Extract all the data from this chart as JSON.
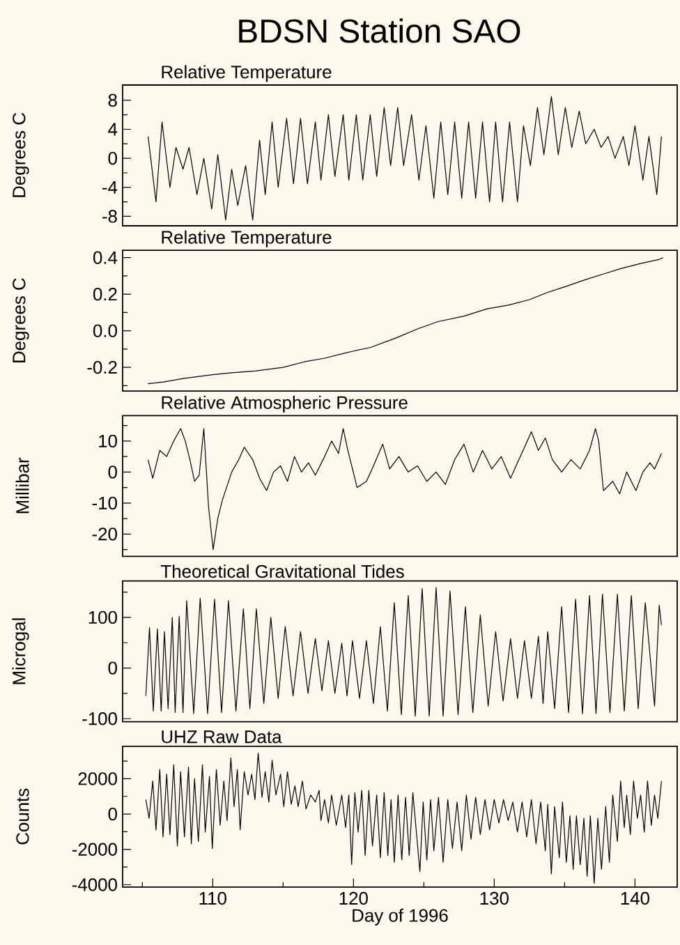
{
  "chart_data": [
    {
      "type": "line",
      "title": "BDSN Station SAO",
      "subtitle": "Relative Temperature",
      "ylabel": "Degrees C",
      "color": "#000000",
      "xlim": [
        103.6,
        143.0
      ],
      "ylim": [
        -9.3,
        10.1
      ],
      "tick_labels": "y",
      "yticks": [
        8,
        4,
        0,
        -4,
        -8,
        {
          "value": 6,
          "label": null
        },
        {
          "value": 2,
          "label": null
        },
        {
          "value": -2,
          "label": null
        },
        {
          "value": -6,
          "label": null
        }
      ],
      "x": [
        105.41,
        105.97,
        106.4,
        106.96,
        107.39,
        107.89,
        108.32,
        108.88,
        109.37,
        109.93,
        110.36,
        110.92,
        111.35,
        111.78,
        112.34,
        112.84,
        113.33,
        113.73,
        114.22,
        114.65,
        115.25,
        115.74,
        116.24,
        116.73,
        117.29,
        117.69,
        118.22,
        118.68,
        119.27,
        119.67,
        120.2,
        120.66,
        121.19,
        121.65,
        122.18,
        122.64,
        123.14,
        123.56,
        124.13,
        124.65,
        125.15,
        125.71,
        126.2,
        126.7,
        127.19,
        127.69,
        128.18,
        128.68,
        129.17,
        129.67,
        130.1,
        130.59,
        131.09,
        131.65,
        132.08,
        132.57,
        133.07,
        133.53,
        134.06,
        134.55,
        135.05,
        135.51,
        136.04,
        136.5,
        137.1,
        137.59,
        138.09,
        138.58,
        139.17,
        139.57,
        140.0,
        140.56,
        140.99,
        141.55,
        141.88
      ],
      "values": [
        3,
        -6,
        5,
        -4,
        1.5,
        -1.5,
        1.5,
        -5,
        0,
        -7,
        0.5,
        -8.5,
        -1.5,
        -6.5,
        -1,
        -8.5,
        2.5,
        -5,
        5,
        -4,
        5.5,
        -3.5,
        5.5,
        -3.5,
        5,
        -3,
        6,
        -2.5,
        6,
        -3,
        6,
        -3,
        6,
        -2.5,
        7,
        -1,
        7,
        -1,
        6,
        -3,
        4.5,
        -5.5,
        5,
        -5,
        5,
        -5.5,
        5,
        -5.5,
        5,
        -6,
        5,
        -6,
        5,
        -6,
        4.5,
        -1,
        7,
        0.5,
        8.5,
        0.5,
        7,
        1.5,
        6.5,
        2,
        4,
        1.5,
        3,
        0,
        3,
        -1,
        4.5,
        -3,
        3,
        -5,
        3
      ]
    },
    {
      "type": "line",
      "title": "Relative Temperature",
      "ylabel": "Degrees C",
      "color": "#000000",
      "xlim": [
        103.6,
        143.0
      ],
      "ylim": [
        -0.33,
        0.44
      ],
      "tick_labels": "y",
      "yticks": [
        0.4,
        0.2,
        {
          "value": 0,
          "label": "0.0"
        },
        -0.2,
        {
          "value": 0.3,
          "label": null
        },
        {
          "value": 0.1,
          "label": null
        },
        {
          "value": -0.1,
          "label": null
        },
        {
          "value": -0.3,
          "label": null
        }
      ],
      "x": [
        105.4,
        106.5,
        108,
        110,
        111.35,
        113,
        115,
        116.5,
        117.95,
        119.5,
        121.25,
        123,
        124.55,
        126,
        127.85,
        129.5,
        131,
        132.5,
        133.8,
        135,
        136.5,
        137.75,
        139,
        140.5,
        141.7,
        142
      ],
      "values": [
        -0.29,
        -0.28,
        -0.26,
        -0.24,
        -0.23,
        -0.22,
        -0.2,
        -0.17,
        -0.15,
        -0.12,
        -0.09,
        -0.04,
        0.01,
        0.05,
        0.08,
        0.12,
        0.14,
        0.17,
        0.21,
        0.24,
        0.28,
        0.31,
        0.34,
        0.37,
        0.39,
        0.4
      ]
    },
    {
      "type": "line",
      "title": "Relative Atmospheric Pressure",
      "ylabel": "Millibar",
      "color": "#000000",
      "xlim": [
        103.6,
        143.0
      ],
      "ylim": [
        -27.2,
        18.2
      ],
      "tick_labels": "y",
      "yticks": [
        10,
        0,
        -10,
        -20,
        {
          "value": 15,
          "label": null
        },
        {
          "value": 5,
          "label": null
        },
        {
          "value": -5,
          "label": null
        },
        {
          "value": -15,
          "label": null
        },
        {
          "value": -25,
          "label": null
        }
      ],
      "x": [
        105.41,
        105.74,
        106.24,
        106.73,
        107.23,
        107.72,
        108.05,
        108.38,
        108.71,
        109.04,
        109.37,
        109.7,
        110.03,
        110.36,
        110.69,
        111.35,
        111.85,
        112.24,
        112.84,
        113.33,
        113.83,
        114.32,
        114.82,
        115.31,
        115.81,
        116.3,
        116.8,
        117.29,
        117.95,
        118.45,
        118.94,
        119.27,
        119.6,
        120.26,
        120.92,
        121.42,
        122.08,
        122.57,
        123.23,
        123.89,
        124.55,
        125.21,
        125.87,
        126.53,
        127.19,
        127.85,
        128.51,
        129.17,
        129.83,
        130.5,
        131.16,
        131.65,
        132.15,
        132.64,
        133.14,
        133.63,
        134.13,
        134.79,
        135.45,
        136.11,
        136.77,
        137.19,
        137.42,
        137.76,
        138.42,
        138.91,
        139.41,
        140.07,
        140.56,
        141.06,
        141.39,
        141.88
      ],
      "values": [
        4,
        -2,
        7,
        5,
        10,
        14,
        10,
        4,
        -3,
        -1,
        14,
        -11,
        -25,
        -15,
        -9,
        0,
        4,
        8,
        4,
        -2,
        -6,
        0,
        2,
        -3,
        5,
        0,
        3,
        -1,
        5,
        10,
        6,
        14,
        7,
        -5,
        -3,
        2,
        9,
        1,
        5,
        0,
        2,
        -3,
        0,
        -4,
        4,
        9,
        0,
        7,
        1,
        5,
        -2,
        3,
        8,
        13,
        7,
        11,
        4,
        0,
        4,
        1,
        7,
        14,
        10,
        -6,
        -3,
        -7,
        0,
        -6,
        0,
        3,
        1,
        6
      ]
    },
    {
      "type": "line",
      "title": "Theoretical Gravitational Tides",
      "ylabel": "Microgal",
      "color": "#000000",
      "xlim": [
        103.6,
        143.0
      ],
      "ylim": [
        -106,
        172
      ],
      "tick_labels": "y",
      "yticks": [
        100,
        0,
        -100,
        {
          "value": 150,
          "label": null
        },
        {
          "value": 50,
          "label": null
        },
        {
          "value": -50,
          "label": null
        }
      ],
      "x": [
        105.25,
        105.51,
        105.78,
        106.07,
        106.34,
        106.57,
        106.83,
        107.13,
        107.33,
        107.62,
        107.89,
        108.15,
        108.65,
        109.11,
        109.64,
        110.13,
        110.63,
        111.12,
        111.65,
        112.18,
        112.64,
        113.1,
        113.63,
        114.13,
        114.65,
        115.15,
        115.71,
        116.24,
        116.77,
        117.29,
        117.76,
        118.22,
        118.68,
        119.17,
        119.54,
        119.93,
        120.43,
        120.92,
        121.42,
        121.91,
        122.41,
        122.9,
        123.4,
        123.89,
        124.39,
        124.88,
        125.38,
        125.87,
        126.37,
        126.86,
        127.43,
        127.95,
        128.48,
        129.01,
        129.57,
        130.1,
        130.63,
        131.16,
        131.65,
        132.15,
        132.64,
        133.14,
        133.47,
        133.8,
        134.29,
        134.79,
        135.28,
        135.78,
        136.27,
        136.77,
        137.23,
        137.69,
        138.22,
        138.75,
        139.24,
        139.74,
        140.23,
        140.73,
        141.39,
        141.72,
        141.88
      ],
      "values": [
        -55,
        80,
        -85,
        77,
        -85,
        72,
        -80,
        100,
        -88,
        102,
        -88,
        133,
        -90,
        138,
        -90,
        136,
        -88,
        133,
        -85,
        117,
        -80,
        117,
        -70,
        100,
        -60,
        82,
        -55,
        72,
        -50,
        58,
        -45,
        54,
        -50,
        49,
        -55,
        54,
        -60,
        54,
        -70,
        82,
        -85,
        129,
        -92,
        143,
        -95,
        157,
        -95,
        159,
        -95,
        152,
        -92,
        121,
        -88,
        105,
        -75,
        72,
        -65,
        58,
        -60,
        54,
        -60,
        63,
        -70,
        72,
        -80,
        121,
        -88,
        136,
        -90,
        143,
        -90,
        146,
        -88,
        146,
        -85,
        143,
        -80,
        129,
        -75,
        124,
        85
      ]
    },
    {
      "type": "line",
      "title": "UHZ Raw Data",
      "ylabel": "Counts",
      "xlabel": "Day of 1996",
      "color": "#000000",
      "xlim": [
        103.6,
        143.0
      ],
      "ylim": [
        -4130,
        3840
      ],
      "xticks": [
        {
          "value": 105,
          "label": null
        },
        110,
        {
          "value": 115,
          "label": null
        },
        120,
        {
          "value": 125,
          "label": null
        },
        130,
        {
          "value": 135,
          "label": null
        },
        140
      ],
      "yticks": [
        2000,
        0,
        -2000,
        -4000,
        {
          "value": 3000,
          "label": null
        },
        {
          "value": 1000,
          "label": null
        },
        {
          "value": -1000,
          "label": null
        },
        {
          "value": -3000,
          "label": null
        }
      ],
      "x": [
        105.25,
        105.48,
        105.74,
        105.97,
        106.24,
        106.47,
        106.73,
        106.96,
        107.23,
        107.49,
        107.72,
        107.99,
        108.28,
        108.48,
        108.71,
        108.98,
        109.27,
        109.47,
        109.77,
        109.97,
        110.26,
        110.53,
        110.79,
        111.02,
        111.29,
        111.52,
        111.75,
        111.95,
        112.24,
        112.51,
        112.77,
        113.0,
        113.23,
        113.5,
        113.73,
        113.99,
        114.22,
        114.49,
        114.82,
        115.05,
        115.31,
        115.58,
        115.84,
        116.07,
        116.37,
        116.63,
        116.96,
        117.29,
        117.56,
        117.69,
        117.95,
        118.22,
        118.45,
        118.78,
        119.17,
        119.44,
        119.67,
        119.87,
        120.1,
        120.33,
        120.59,
        120.83,
        121.09,
        121.35,
        121.65,
        121.91,
        122.18,
        122.44,
        122.67,
        122.9,
        123.17,
        123.43,
        123.7,
        123.96,
        124.22,
        124.72,
        124.95,
        125.21,
        125.48,
        125.71,
        126.04,
        126.37,
        126.7,
        127.03,
        127.36,
        127.69,
        128.02,
        128.35,
        128.68,
        129.01,
        129.34,
        129.67,
        130.0,
        130.33,
        130.66,
        130.99,
        131.32,
        131.65,
        131.98,
        132.31,
        132.64,
        132.97,
        133.3,
        133.63,
        133.8,
        134.06,
        134.29,
        134.62,
        134.85,
        135.12,
        135.38,
        135.61,
        135.84,
        136.11,
        136.37,
        136.6,
        136.83,
        137.1,
        137.36,
        137.62,
        137.92,
        138.18,
        138.42,
        138.75,
        138.98,
        139.24,
        139.41,
        139.67,
        139.9,
        140.17,
        140.4,
        140.66,
        140.89,
        141.16,
        141.39,
        141.62,
        141.88
      ],
      "values": [
        820,
        -240,
        1870,
        -900,
        2530,
        -1290,
        2260,
        -1160,
        2790,
        -1810,
        2400,
        -1290,
        2660,
        -1680,
        2000,
        -1550,
        2790,
        -1020,
        2130,
        -1950,
        2530,
        -630,
        1870,
        -370,
        3180,
        420,
        2530,
        -890,
        2400,
        1080,
        2260,
        820,
        3450,
        950,
        2400,
        680,
        3050,
        1080,
        2260,
        420,
        2400,
        550,
        1600,
        420,
        1870,
        290,
        1080,
        680,
        1340,
        -370,
        820,
        -500,
        1080,
        -630,
        1080,
        -760,
        1080,
        -2860,
        1210,
        -1020,
        1340,
        -2340,
        1340,
        -1810,
        1080,
        -2470,
        1210,
        -2340,
        820,
        -2730,
        1080,
        -2600,
        950,
        -2340,
        1210,
        -3260,
        680,
        -2600,
        820,
        -2080,
        950,
        -2730,
        820,
        -1950,
        680,
        -2080,
        1080,
        -1420,
        950,
        -1160,
        820,
        -890,
        820,
        -500,
        820,
        -370,
        680,
        -1020,
        680,
        -1290,
        820,
        -1680,
        680,
        -2080,
        550,
        -3390,
        420,
        -2470,
        680,
        -2730,
        -100,
        -3130,
        -100,
        -2860,
        -240,
        -3520,
        -100,
        -3920,
        -240,
        -3130,
        420,
        -2730,
        1080,
        -1550,
        1870,
        -760,
        1080,
        -1160,
        1870,
        -240,
        1080,
        -1020,
        1870,
        -630,
        1080,
        -240,
        1870
      ]
    }
  ]
}
